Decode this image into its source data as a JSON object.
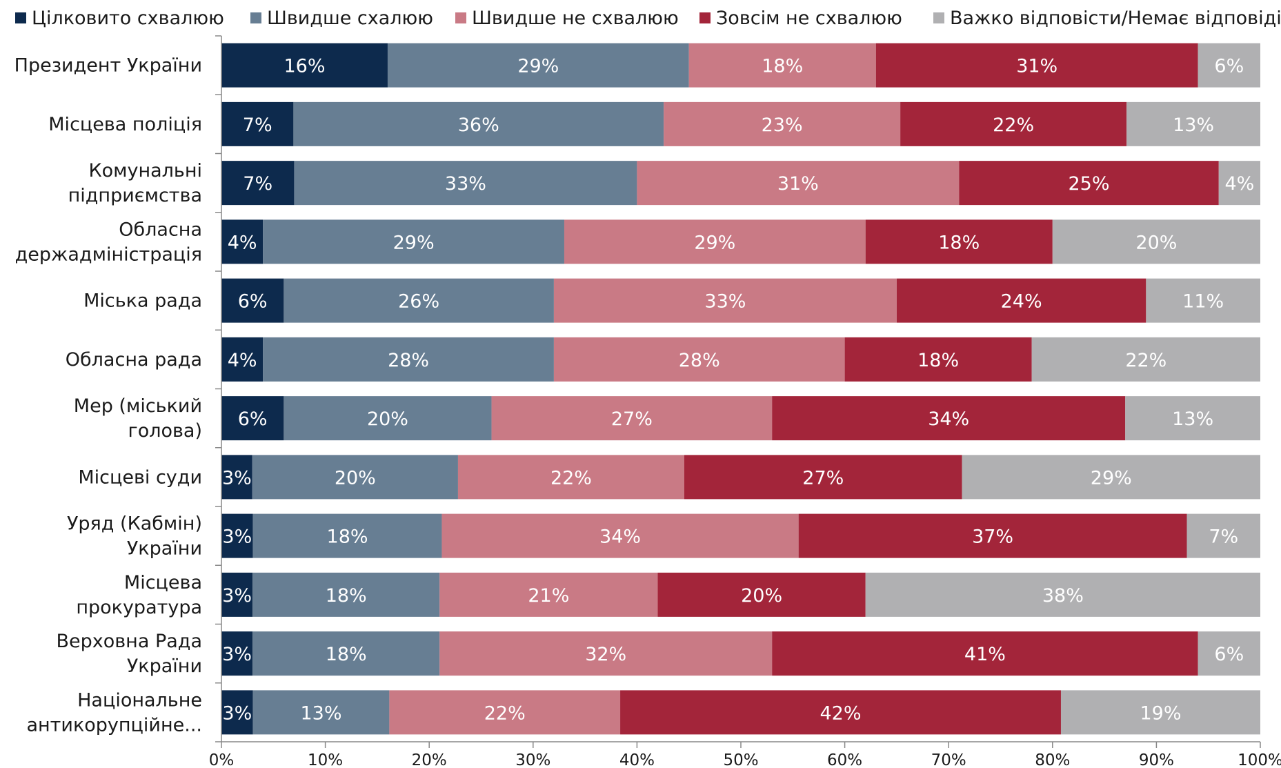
{
  "chart_data": {
    "type": "bar",
    "orientation": "horizontal",
    "stacked": "percent",
    "categories": [
      [
        "Президент України"
      ],
      [
        "Місцева поліція"
      ],
      [
        "Комунальні",
        "підприємства"
      ],
      [
        "Обласна",
        "держадміністрація"
      ],
      [
        "Міська рада"
      ],
      [
        "Обласна рада"
      ],
      [
        "Мер (міський",
        "голова)"
      ],
      [
        "Місцеві суди"
      ],
      [
        "Уряд (Кабмін)",
        "України"
      ],
      [
        "Місцева",
        "прокуратура"
      ],
      [
        "Верховна Рада",
        "України"
      ],
      [
        "Національне",
        "антикорупційне..."
      ]
    ],
    "series": [
      {
        "name": "Цілковито схвалюю",
        "color": "#0d2a4d",
        "values": [
          16,
          7,
          7,
          4,
          6,
          4,
          6,
          3,
          3,
          3,
          3,
          3
        ],
        "labels": [
          "16%",
          "7%",
          "7%",
          "4%",
          "6%",
          "4%",
          "6%",
          "3%",
          "3%",
          "3%",
          "3%",
          "3%"
        ]
      },
      {
        "name": "Швидше схалюю",
        "color": "#677e93",
        "values": [
          29,
          36,
          33,
          29,
          26,
          28,
          20,
          20,
          18,
          18,
          18,
          13
        ],
        "labels": [
          "29%",
          "36%",
          "33%",
          "29%",
          "26%",
          "28%",
          "20%",
          "20%",
          "18%",
          "18%",
          "18%",
          "13%"
        ]
      },
      {
        "name": "Швидше не схвалюю",
        "color": "#c97a85",
        "values": [
          18,
          23,
          31,
          29,
          33,
          28,
          27,
          22,
          34,
          21,
          32,
          22
        ],
        "labels": [
          "18%",
          "23%",
          "31%",
          "29%",
          "33%",
          "28%",
          "27%",
          "22%",
          "34%",
          "21%",
          "32%",
          "22%"
        ]
      },
      {
        "name": "Зовсім не схвалюю",
        "color": "#a3253a",
        "values": [
          31,
          22,
          25,
          18,
          24,
          18,
          34,
          27,
          37,
          20,
          41,
          42
        ],
        "labels": [
          "31%",
          "22%",
          "25%",
          "18%",
          "24%",
          "18%",
          "34%",
          "27%",
          "37%",
          "20%",
          "41%",
          "42%"
        ]
      },
      {
        "name": "Важко відповісти/Немає відповіді",
        "color": "#b0b0b2",
        "values": [
          6,
          13,
          4,
          20,
          11,
          22,
          13,
          29,
          7,
          38,
          6,
          19
        ],
        "labels": [
          "6%",
          "13%",
          "4%",
          "20%",
          "11%",
          "22%",
          "13%",
          "29%",
          "7%",
          "38%",
          "6%",
          "19%"
        ]
      }
    ],
    "xlim": [
      0,
      100
    ],
    "xticks": [
      "0%",
      "10%",
      "20%",
      "30%",
      "40%",
      "50%",
      "60%",
      "70%",
      "80%",
      "90%",
      "100%"
    ],
    "legend": "top",
    "grid": false
  }
}
